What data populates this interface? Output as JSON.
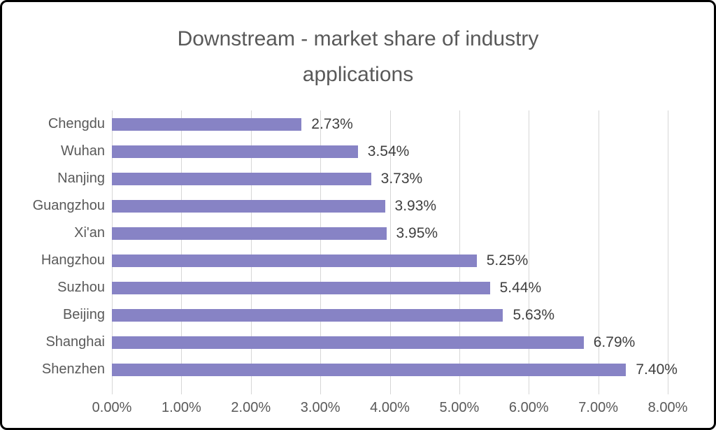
{
  "title": "Downstream - market share of industry applications",
  "chart_data": {
    "type": "bar",
    "orientation": "horizontal",
    "title": "Downstream - market share of industry applications",
    "categories": [
      "Chengdu",
      "Wuhan",
      "Nanjing",
      "Guangzhou",
      "Xi'an",
      "Hangzhou",
      "Suzhou",
      "Beijing",
      "Shanghai",
      "Shenzhen"
    ],
    "values": [
      2.73,
      3.54,
      3.73,
      3.93,
      3.95,
      5.25,
      5.44,
      5.63,
      6.79,
      7.4
    ],
    "value_labels": [
      "2.73%",
      "3.54%",
      "3.73%",
      "3.93%",
      "3.95%",
      "5.25%",
      "5.44%",
      "5.63%",
      "6.79%",
      "7.40%"
    ],
    "xlabel": "",
    "ylabel": "",
    "xlim": [
      0,
      8
    ],
    "x_ticks": [
      "0.00%",
      "1.00%",
      "2.00%",
      "3.00%",
      "4.00%",
      "5.00%",
      "6.00%",
      "7.00%",
      "8.00%"
    ],
    "grid": "vertical",
    "legend": "none",
    "data_labels": "outside-end"
  },
  "colors": {
    "bar": "#8783C5",
    "gridline": "#D6D6D6",
    "title_text": "#595959",
    "category_text": "#595959",
    "value_text": "#3F3F3F",
    "tick_text": "#595959",
    "background": "#FFFFFF",
    "frame_border": "#000000"
  }
}
